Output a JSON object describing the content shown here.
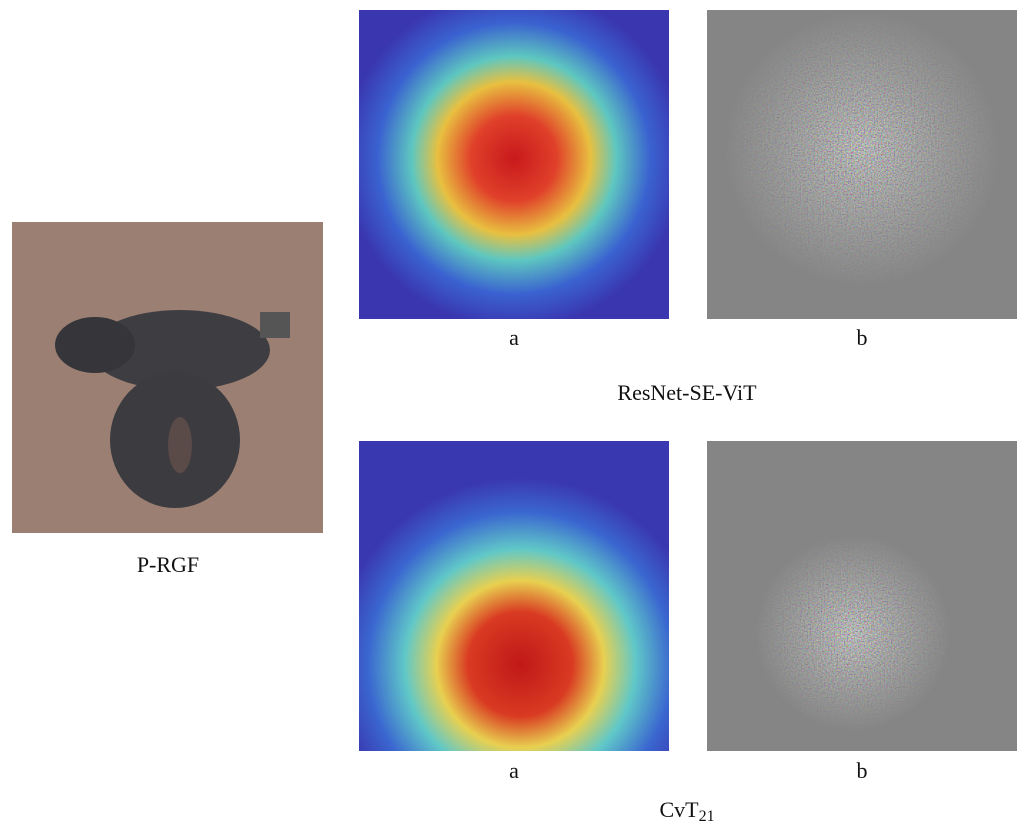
{
  "panels": {
    "original": {
      "label": "P-RGF"
    },
    "resnet_se_vit": {
      "title": "ResNet-SE-ViT",
      "a": "a",
      "b": "b"
    },
    "cvt21": {
      "title": {
        "base": "CvT",
        "subscript": "21"
      },
      "a": "a",
      "b": "b"
    }
  }
}
